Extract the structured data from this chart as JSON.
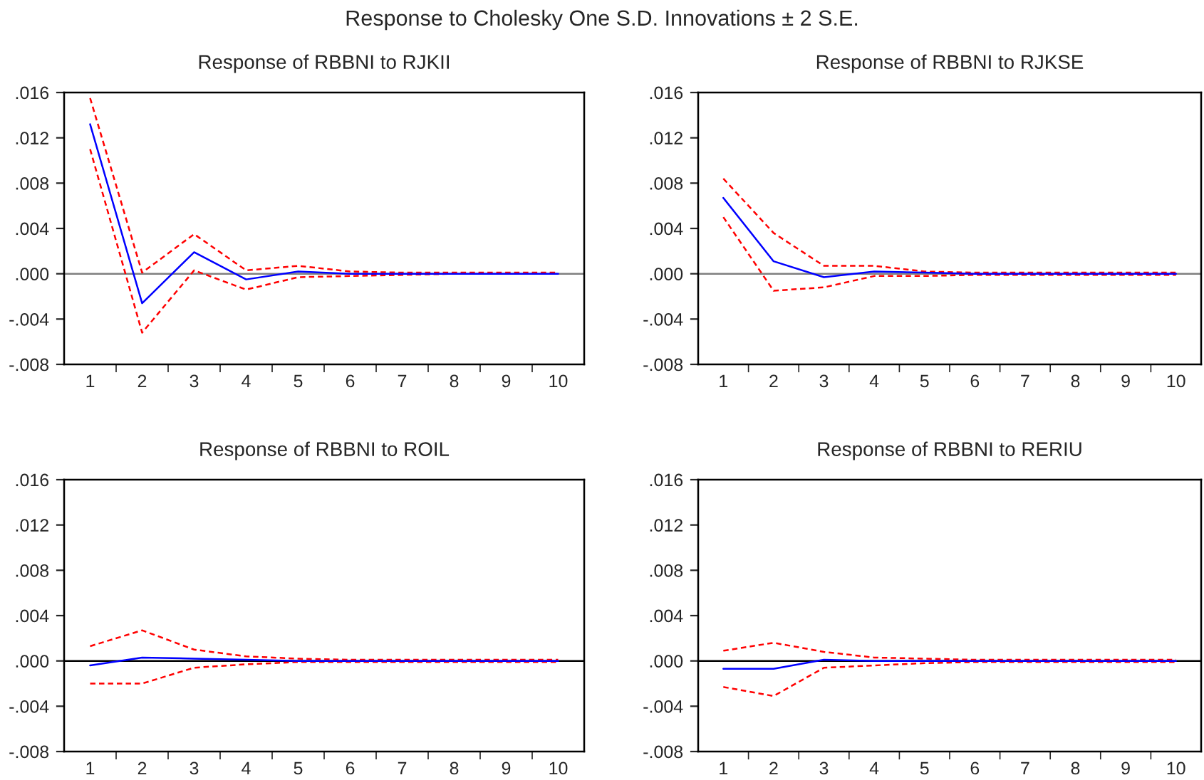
{
  "chart_data": [
    {
      "type": "line",
      "title": "Response of RBBNI to RJKII",
      "annotations": [
        "Response to Cholesky One S.D. Innovations ± 2 S.E."
      ],
      "categories": [
        "1",
        "2",
        "3",
        "4",
        "5",
        "6",
        "7",
        "8",
        "9",
        "10"
      ],
      "series": [
        {
          "color": "#0000ff",
          "line_style": "solid",
          "values": [
            0.0132,
            -0.0026,
            0.0019,
            -0.0005,
            0.0002,
            0.0,
            0.0,
            0.0,
            0.0,
            0.0
          ]
        },
        {
          "color": "#ff0000",
          "line_style": "dashed",
          "values": [
            0.0155,
            0.0001,
            0.0035,
            0.0003,
            0.0007,
            0.0002,
            0.0001,
            0.0001,
            0.0001,
            0.0001
          ]
        },
        {
          "color": "#ff0000",
          "line_style": "dashed",
          "values": [
            0.011,
            -0.0052,
            0.0003,
            -0.0014,
            -0.0003,
            -0.0002,
            -0.0001,
            0.0,
            0.0,
            0.0
          ]
        }
      ],
      "ylim": [
        -0.008,
        0.016
      ],
      "yticks": [
        {
          "value": -0.008,
          "label": "-.008"
        },
        {
          "value": -0.004,
          "label": "-.004"
        },
        {
          "value": 0.0,
          "label": ".000"
        },
        {
          "value": 0.004,
          "label": ".004"
        },
        {
          "value": 0.008,
          "label": ".008"
        },
        {
          "value": 0.012,
          "label": ".012"
        },
        {
          "value": 0.016,
          "label": ".016"
        }
      ],
      "ref_lines": [
        {
          "axis": "y",
          "value": 0.0,
          "color": "#808080"
        }
      ],
      "grid": false,
      "legend": false
    },
    {
      "type": "line",
      "title": "Response of RBBNI to RJKSE",
      "categories": [
        "1",
        "2",
        "3",
        "4",
        "5",
        "6",
        "7",
        "8",
        "9",
        "10"
      ],
      "series": [
        {
          "color": "#0000ff",
          "line_style": "solid",
          "values": [
            0.0067,
            0.0011,
            -0.0003,
            0.0002,
            0.0001,
            0.0,
            0.0,
            0.0,
            0.0,
            0.0
          ]
        },
        {
          "color": "#ff0000",
          "line_style": "dashed",
          "values": [
            0.0084,
            0.0036,
            0.0007,
            0.0007,
            0.0002,
            0.0001,
            0.0001,
            0.0001,
            0.0001,
            0.0001
          ]
        },
        {
          "color": "#ff0000",
          "line_style": "dashed",
          "values": [
            0.005,
            -0.0015,
            -0.0012,
            -0.0002,
            -0.0002,
            -0.0001,
            -0.0001,
            -0.0001,
            -0.0001,
            -0.0001
          ]
        }
      ],
      "ylim": [
        -0.008,
        0.016
      ],
      "yticks": [
        {
          "value": -0.008,
          "label": "-.008"
        },
        {
          "value": -0.004,
          "label": "-.004"
        },
        {
          "value": 0.0,
          "label": ".000"
        },
        {
          "value": 0.004,
          "label": ".004"
        },
        {
          "value": 0.008,
          "label": ".008"
        },
        {
          "value": 0.012,
          "label": ".012"
        },
        {
          "value": 0.016,
          "label": ".016"
        }
      ],
      "ref_lines": [
        {
          "axis": "y",
          "value": 0.0,
          "color": "#808080"
        }
      ],
      "grid": false,
      "legend": false
    },
    {
      "type": "line",
      "title": "Response of RBBNI to ROIL",
      "categories": [
        "1",
        "2",
        "3",
        "4",
        "5",
        "6",
        "7",
        "8",
        "9",
        "10"
      ],
      "series": [
        {
          "color": "#0000ff",
          "line_style": "solid",
          "values": [
            -0.0004,
            0.0003,
            0.0002,
            0.0001,
            0.0,
            0.0,
            0.0,
            0.0,
            0.0,
            0.0
          ]
        },
        {
          "color": "#ff0000",
          "line_style": "dashed",
          "values": [
            0.0013,
            0.0027,
            0.001,
            0.0004,
            0.0002,
            0.0001,
            0.0001,
            0.0001,
            0.0001,
            0.0001
          ]
        },
        {
          "color": "#ff0000",
          "line_style": "dashed",
          "values": [
            -0.002,
            -0.002,
            -0.0006,
            -0.0003,
            -0.0001,
            -0.0001,
            -0.0001,
            -0.0001,
            -0.0001,
            -0.0001
          ]
        }
      ],
      "ylim": [
        -0.008,
        0.016
      ],
      "yticks": [
        {
          "value": -0.008,
          "label": "-.008"
        },
        {
          "value": -0.004,
          "label": "-.004"
        },
        {
          "value": 0.0,
          "label": ".000"
        },
        {
          "value": 0.004,
          "label": ".004"
        },
        {
          "value": 0.008,
          "label": ".008"
        },
        {
          "value": 0.012,
          "label": ".012"
        },
        {
          "value": 0.016,
          "label": ".016"
        }
      ],
      "ref_lines": [
        {
          "axis": "y",
          "value": 0.0,
          "color": "#000000"
        }
      ],
      "grid": false,
      "legend": false
    },
    {
      "type": "line",
      "title": "Response of RBBNI to RERIU",
      "categories": [
        "1",
        "2",
        "3",
        "4",
        "5",
        "6",
        "7",
        "8",
        "9",
        "10"
      ],
      "series": [
        {
          "color": "#0000ff",
          "line_style": "solid",
          "values": [
            -0.0007,
            -0.0007,
            0.0001,
            0.0,
            0.0,
            0.0,
            0.0,
            0.0,
            0.0,
            0.0
          ]
        },
        {
          "color": "#ff0000",
          "line_style": "dashed",
          "values": [
            0.0009,
            0.0016,
            0.0008,
            0.0003,
            0.0002,
            0.0001,
            0.0001,
            0.0001,
            0.0001,
            0.0001
          ]
        },
        {
          "color": "#ff0000",
          "line_style": "dashed",
          "values": [
            -0.0023,
            -0.0031,
            -0.0006,
            -0.0004,
            -0.0002,
            -0.0001,
            -0.0001,
            -0.0001,
            -0.0001,
            -0.0001
          ]
        }
      ],
      "ylim": [
        -0.008,
        0.016
      ],
      "yticks": [
        {
          "value": -0.008,
          "label": "-.008"
        },
        {
          "value": -0.004,
          "label": "-.004"
        },
        {
          "value": 0.0,
          "label": ".000"
        },
        {
          "value": 0.004,
          "label": ".004"
        },
        {
          "value": 0.008,
          "label": ".008"
        },
        {
          "value": 0.012,
          "label": ".012"
        },
        {
          "value": 0.016,
          "label": ".016"
        }
      ],
      "ref_lines": [
        {
          "axis": "y",
          "value": 0.0,
          "color": "#000000"
        }
      ],
      "grid": false,
      "legend": false
    }
  ]
}
